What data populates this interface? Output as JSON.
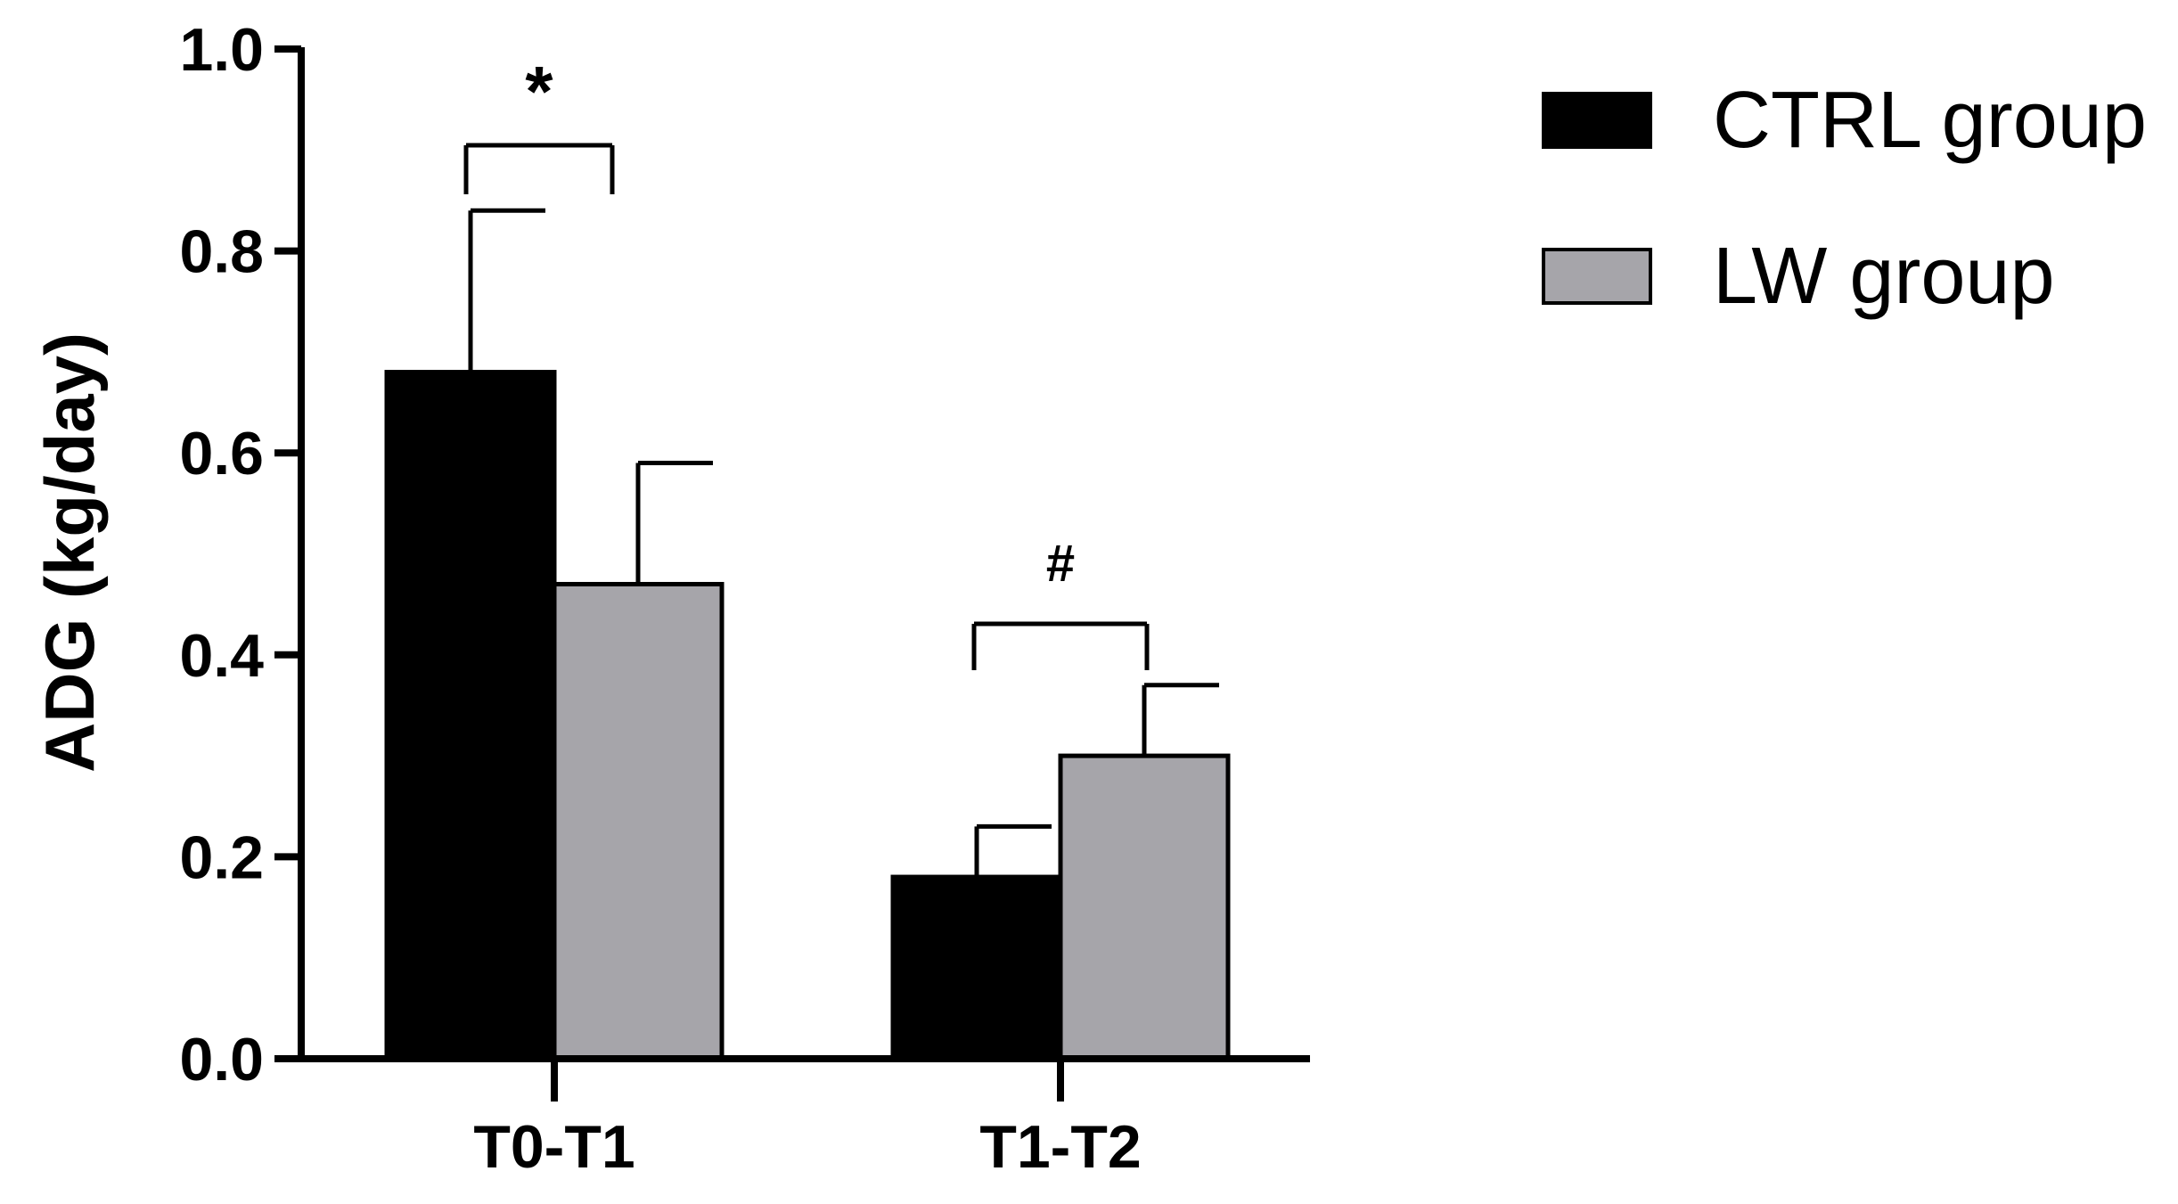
{
  "chart_data": {
    "type": "bar",
    "title": "",
    "xlabel": "",
    "ylabel": "ADG (kg/day)",
    "ylim": [
      0,
      1.0
    ],
    "yticks": [
      "0.0",
      "0.2",
      "0.4",
      "0.6",
      "0.8",
      "1.0"
    ],
    "categories": [
      "T0-T1",
      "T1-T2"
    ],
    "series": [
      {
        "name": "CTRL group",
        "color": "#000000",
        "values": [
          0.68,
          0.18
        ],
        "errors": [
          0.16,
          0.05
        ]
      },
      {
        "name": "LW group",
        "color": "#a6a5aa",
        "values": [
          0.47,
          0.3
        ],
        "errors": [
          0.12,
          0.07
        ]
      }
    ],
    "annotations": [
      {
        "category": "T0-T1",
        "symbol": "*"
      },
      {
        "category": "T1-T2",
        "symbol": "#"
      }
    ],
    "legend_position": "top-right",
    "grid": false
  }
}
